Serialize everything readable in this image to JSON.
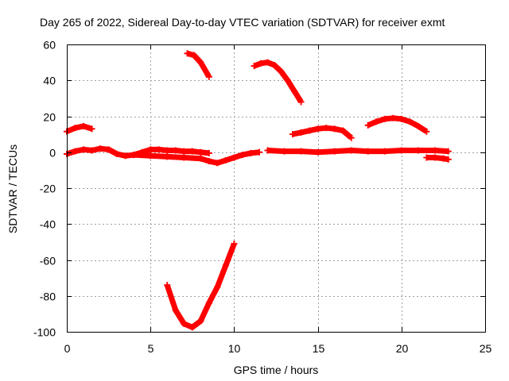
{
  "chart_data": {
    "type": "line",
    "title": "Day 265 of 2022, Sidereal Day-to-day VTEC variation (SDTVAR) for receiver exmt",
    "xlabel": "GPS time / hours",
    "ylabel": "SDTVAR / TECUs",
    "xlim": [
      0,
      25
    ],
    "ylim": [
      -100,
      60
    ],
    "xticks": [
      0,
      5,
      10,
      15,
      20,
      25
    ],
    "yticks": [
      -100,
      -80,
      -60,
      -40,
      -20,
      0,
      20,
      40,
      60
    ],
    "xtick_labels": [
      "0",
      "5",
      "10",
      "15",
      "20",
      "25"
    ],
    "ytick_labels": [
      "-100",
      "-80",
      "-60",
      "-40",
      "-20",
      "0",
      "20",
      "40",
      "60"
    ],
    "grid": true,
    "legend": "none",
    "series_color": "#ff0000",
    "series": [
      {
        "name": "arc-near-zero-a",
        "x": [
          0,
          0.5,
          1,
          1.5,
          2,
          2.5,
          3,
          3.5,
          4,
          4.5,
          5,
          5.5,
          6,
          6.5,
          7,
          7.5,
          8,
          8.5
        ],
        "y": [
          -1,
          0.5,
          1.5,
          1,
          2,
          1.5,
          -1,
          -2,
          -1.5,
          0,
          1.5,
          1.5,
          1,
          1,
          0.5,
          0.5,
          0,
          -0.5
        ]
      },
      {
        "name": "arc-near-zero-b",
        "x": [
          4,
          5,
          6,
          7,
          8,
          8.5,
          9,
          9.5,
          10,
          10.5,
          11,
          11.5
        ],
        "y": [
          -1.5,
          -2,
          -2.5,
          -3,
          -3.5,
          -5,
          -6,
          -4.5,
          -3,
          -1.5,
          -0.5,
          0
        ]
      },
      {
        "name": "arc-near-zero-c",
        "x": [
          12,
          13,
          14,
          15,
          16,
          17,
          18,
          19,
          20,
          21,
          22,
          22.8
        ],
        "y": [
          1,
          0.5,
          0.5,
          0,
          0.5,
          1,
          0.5,
          0.5,
          1,
          1,
          1,
          0.5
        ]
      },
      {
        "name": "arc-early-hump",
        "x": [
          0,
          0.5,
          1,
          1.5
        ],
        "y": [
          11.5,
          13.5,
          14.5,
          13
        ]
      },
      {
        "name": "arc-high-a",
        "x": [
          7.2,
          7.6,
          8,
          8.5
        ],
        "y": [
          55,
          54,
          50,
          42
        ]
      },
      {
        "name": "arc-high-b",
        "x": [
          11.2,
          11.6,
          12,
          12.4,
          12.8,
          13.2,
          13.6,
          14
        ],
        "y": [
          48,
          49.5,
          50,
          48.5,
          45,
          40,
          34,
          28
        ]
      },
      {
        "name": "arc-mid-b",
        "x": [
          13.5,
          14,
          14.5,
          15,
          15.5,
          16,
          16.5,
          17
        ],
        "y": [
          10,
          11,
          12,
          13,
          13.5,
          13,
          12,
          8
        ]
      },
      {
        "name": "arc-mid-c",
        "x": [
          18,
          18.5,
          19,
          19.5,
          20,
          20.5,
          21,
          21.5
        ],
        "y": [
          15,
          17,
          18.5,
          19,
          18.5,
          17,
          14.5,
          11.5
        ]
      },
      {
        "name": "arc-late-negative",
        "x": [
          21.5,
          22,
          22.5,
          22.8
        ],
        "y": [
          -3,
          -3,
          -3.5,
          -4
        ]
      },
      {
        "name": "arc-deep-minimum",
        "x": [
          6,
          6.5,
          7,
          7.5,
          8,
          8.5,
          9,
          9.5,
          10
        ],
        "y": [
          -74,
          -88,
          -95.5,
          -97.5,
          -94,
          -84,
          -75,
          -63,
          -51
        ]
      }
    ]
  }
}
